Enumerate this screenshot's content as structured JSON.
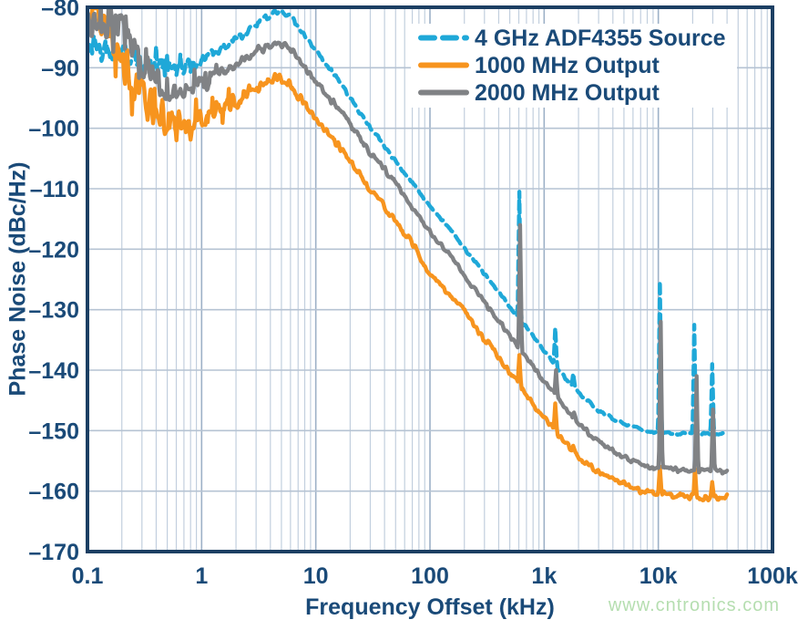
{
  "watermark": {
    "text": "www.cntronics.com",
    "color": "#b5deb0"
  },
  "chart_data": {
    "type": "line",
    "title": "",
    "xlabel": "Frequency Offset (kHz)",
    "ylabel": "Phase Noise (dBc/Hz)",
    "x_scale": "log",
    "xlim": [
      0.1,
      100000
    ],
    "ylim": [
      -170,
      -80
    ],
    "grid": "log minor vertical gridlines, horizontal gridlines every 10 dB",
    "legend_position": "top-right-inside",
    "x_ticks": [
      {
        "v": 0.1,
        "label": "0.1"
      },
      {
        "v": 1,
        "label": "1"
      },
      {
        "v": 10,
        "label": "10"
      },
      {
        "v": 100,
        "label": "100"
      },
      {
        "v": 1000,
        "label": "1k"
      },
      {
        "v": 10000,
        "label": "10k"
      },
      {
        "v": 100000,
        "label": "100k"
      }
    ],
    "y_ticks": [
      {
        "v": -80,
        "label": "–80"
      },
      {
        "v": -90,
        "label": "–90"
      },
      {
        "v": -100,
        "label": "–100"
      },
      {
        "v": -110,
        "label": "–110"
      },
      {
        "v": -120,
        "label": "–120"
      },
      {
        "v": -130,
        "label": "–130"
      },
      {
        "v": -140,
        "label": "–140"
      },
      {
        "v": -150,
        "label": "–150"
      },
      {
        "v": -160,
        "label": "–160"
      },
      {
        "v": -170,
        "label": "–170"
      }
    ],
    "colors": {
      "axis_text": "#1a4a78",
      "frame": "#1c3f63",
      "grid_major": "#9db1c7",
      "grid_minor": "#c2cfde",
      "grid_horizontal": "#b6c3d3",
      "background": "#ffffff"
    },
    "series": [
      {
        "name": "4 GHz ADF4355 Source",
        "color": "#1fa8d8",
        "style": "dashed",
        "noise": 0.8,
        "seed": 11,
        "fmax": 40000,
        "anchors": [
          [
            0.1,
            -86
          ],
          [
            0.15,
            -87
          ],
          [
            0.2,
            -87.5
          ],
          [
            0.3,
            -88.8
          ],
          [
            0.4,
            -89.8
          ],
          [
            0.55,
            -90.3
          ],
          [
            0.8,
            -89.8
          ],
          [
            1,
            -88.8
          ],
          [
            1.5,
            -86.8
          ],
          [
            2,
            -85.3
          ],
          [
            3,
            -82.8
          ],
          [
            4.5,
            -80.6
          ],
          [
            6,
            -81.6
          ],
          [
            8,
            -84.5
          ],
          [
            10,
            -87
          ],
          [
            15,
            -91.5
          ],
          [
            20,
            -95
          ],
          [
            30,
            -99.8
          ],
          [
            50,
            -105.5
          ],
          [
            70,
            -109
          ],
          [
            100,
            -113
          ],
          [
            150,
            -116.5
          ],
          [
            200,
            -119.8
          ],
          [
            300,
            -124
          ],
          [
            500,
            -129.5
          ],
          [
            700,
            -133
          ],
          [
            1000,
            -136.8
          ],
          [
            1500,
            -141
          ],
          [
            2000,
            -143.8
          ],
          [
            3000,
            -146.8
          ],
          [
            5000,
            -148.8
          ],
          [
            7000,
            -149.8
          ],
          [
            10000,
            -150.3
          ],
          [
            15000,
            -150.5
          ],
          [
            20000,
            -150.6
          ],
          [
            30000,
            -150.6
          ],
          [
            40000,
            -150.4
          ]
        ],
        "spurs": [
          [
            610,
            -110.5
          ],
          [
            1250,
            -133
          ],
          [
            1800,
            -140.5
          ],
          [
            10400,
            -125.3
          ],
          [
            20500,
            -132.5
          ],
          [
            29500,
            -139
          ]
        ]
      },
      {
        "name": "1000 MHz Output",
        "color": "#f7941e",
        "style": "solid",
        "noise": 1.5,
        "seed": 23,
        "fmax": 40000,
        "anchors": [
          [
            0.1,
            -80.5
          ],
          [
            0.13,
            -82
          ],
          [
            0.17,
            -85
          ],
          [
            0.2,
            -88
          ],
          [
            0.25,
            -91.5
          ],
          [
            0.3,
            -94
          ],
          [
            0.4,
            -97.5
          ],
          [
            0.55,
            -99.3
          ],
          [
            0.8,
            -99.8
          ],
          [
            1,
            -98.8
          ],
          [
            1.5,
            -96.8
          ],
          [
            2,
            -95.3
          ],
          [
            3,
            -93.3
          ],
          [
            4.5,
            -91.6
          ],
          [
            6,
            -93
          ],
          [
            8,
            -96
          ],
          [
            10,
            -98.4
          ],
          [
            15,
            -102.4
          ],
          [
            20,
            -105.4
          ],
          [
            30,
            -110
          ],
          [
            50,
            -115.3
          ],
          [
            70,
            -119
          ],
          [
            100,
            -124.3
          ],
          [
            150,
            -127.5
          ],
          [
            200,
            -130.3
          ],
          [
            300,
            -134.8
          ],
          [
            500,
            -140.3
          ],
          [
            700,
            -144
          ],
          [
            1000,
            -147.8
          ],
          [
            1500,
            -151.8
          ],
          [
            2000,
            -154.3
          ],
          [
            3000,
            -157
          ],
          [
            5000,
            -158.9
          ],
          [
            7000,
            -159.9
          ],
          [
            10000,
            -160.4
          ],
          [
            15000,
            -160.8
          ],
          [
            20000,
            -161
          ],
          [
            30000,
            -161.1
          ],
          [
            40000,
            -160.8
          ]
        ],
        "spurs": [
          [
            610,
            -137.5
          ],
          [
            1250,
            -145.5
          ],
          [
            1800,
            -152.5
          ],
          [
            10400,
            -156
          ],
          [
            21000,
            -156.3
          ],
          [
            29700,
            -158.5
          ]
        ]
      },
      {
        "name": "2000 MHz Output",
        "color": "#808285",
        "style": "solid",
        "noise": 1.2,
        "seed": 37,
        "fmax": 40000,
        "anchors": [
          [
            0.1,
            -81.5
          ],
          [
            0.15,
            -82.5
          ],
          [
            0.2,
            -84
          ],
          [
            0.25,
            -86.5
          ],
          [
            0.3,
            -89
          ],
          [
            0.4,
            -92
          ],
          [
            0.55,
            -93.8
          ],
          [
            0.8,
            -93.8
          ],
          [
            1,
            -92.8
          ],
          [
            1.5,
            -90.8
          ],
          [
            2,
            -89.3
          ],
          [
            3,
            -87.3
          ],
          [
            4.5,
            -85.8
          ],
          [
            6,
            -86.8
          ],
          [
            8,
            -89.8
          ],
          [
            10,
            -92.3
          ],
          [
            15,
            -96.3
          ],
          [
            20,
            -99.3
          ],
          [
            30,
            -104
          ],
          [
            50,
            -109
          ],
          [
            70,
            -113
          ],
          [
            100,
            -117
          ],
          [
            150,
            -121
          ],
          [
            200,
            -124.3
          ],
          [
            300,
            -128.8
          ],
          [
            500,
            -134.3
          ],
          [
            700,
            -138
          ],
          [
            1000,
            -141.8
          ],
          [
            1500,
            -146
          ],
          [
            2000,
            -148.8
          ],
          [
            3000,
            -151.8
          ],
          [
            5000,
            -154.3
          ],
          [
            7000,
            -155.5
          ],
          [
            10000,
            -156.2
          ],
          [
            15000,
            -156.5
          ],
          [
            20000,
            -156.6
          ],
          [
            30000,
            -156.7
          ],
          [
            40000,
            -156.7
          ]
        ],
        "spurs": [
          [
            615,
            -116
          ],
          [
            1270,
            -140
          ],
          [
            1830,
            -147
          ],
          [
            10450,
            -132
          ],
          [
            21800,
            -141
          ],
          [
            30200,
            -146.5
          ]
        ]
      }
    ]
  }
}
